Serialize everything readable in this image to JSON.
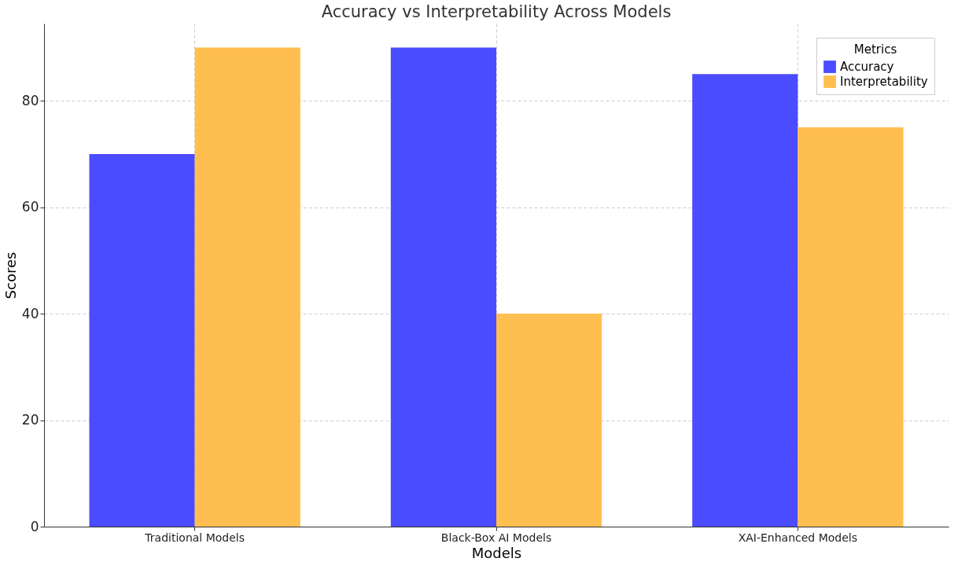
{
  "chart_data": {
    "type": "bar",
    "title": "Accuracy vs Interpretability Across Models",
    "xlabel": "Models",
    "ylabel": "Scores",
    "legend_title": "Metrics",
    "categories": [
      "Traditional Models",
      "Black-Box AI Models",
      "XAI-Enhanced Models"
    ],
    "series": [
      {
        "name": "Accuracy",
        "color": "#4b4bff",
        "values": [
          70,
          90,
          85
        ]
      },
      {
        "name": "Interpretability",
        "color": "#ffbf50",
        "values": [
          90,
          40,
          75
        ]
      }
    ],
    "ylim": [
      0,
      94.5
    ],
    "yticks": [
      0,
      20,
      40,
      60,
      80
    ],
    "grid": true,
    "legend": "top right"
  }
}
